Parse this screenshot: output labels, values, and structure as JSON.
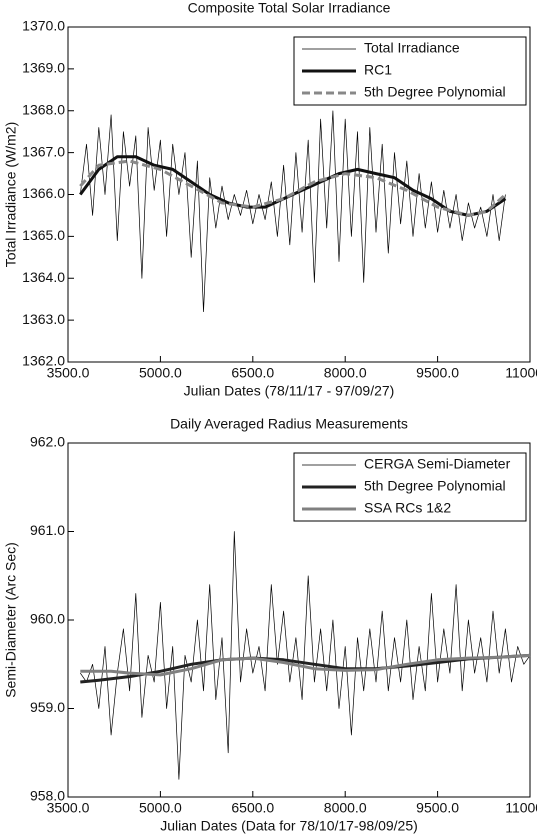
{
  "chart_data": [
    {
      "type": "line",
      "title": "Composite Total Solar Irradiance",
      "xlabel": "Julian Dates (78/11/17 - 97/09/27)",
      "ylabel": "Total Irradiance (W/m2)",
      "xlim": [
        3500,
        11000
      ],
      "ylim": [
        1362,
        1370
      ],
      "xticks": [
        {
          "value": 3500,
          "label": "3500.0"
        },
        {
          "value": 5000,
          "label": "5000.0"
        },
        {
          "value": 6500,
          "label": "6500.0"
        },
        {
          "value": 8000,
          "label": "8000.0"
        },
        {
          "value": 9500,
          "label": "9500.0"
        },
        {
          "value": 11000,
          "label": "11000.0"
        }
      ],
      "yticks": [
        {
          "value": 1362,
          "label": "1362.0"
        },
        {
          "value": 1363,
          "label": "1363.0"
        },
        {
          "value": 1364,
          "label": "1364.0"
        },
        {
          "value": 1365,
          "label": "1365.0"
        },
        {
          "value": 1366,
          "label": "1366.0"
        },
        {
          "value": 1367,
          "label": "1367.0"
        },
        {
          "value": 1368,
          "label": "1368.0"
        },
        {
          "value": 1369,
          "label": "1369.0"
        },
        {
          "value": 1370,
          "label": "1370.0"
        }
      ],
      "legend": "upper right",
      "series": [
        {
          "name": "Total Irradiance",
          "color": "#000000",
          "style": "thin",
          "x": [
            3700,
            3800,
            3900,
            4000,
            4100,
            4200,
            4300,
            4400,
            4500,
            4600,
            4700,
            4800,
            4900,
            5000,
            5100,
            5200,
            5300,
            5400,
            5500,
            5600,
            5700,
            5800,
            5900,
            6000,
            6100,
            6200,
            6300,
            6400,
            6500,
            6600,
            6700,
            6800,
            6900,
            7000,
            7100,
            7200,
            7300,
            7400,
            7500,
            7600,
            7700,
            7800,
            7900,
            8000,
            8100,
            8200,
            8300,
            8400,
            8500,
            8600,
            8700,
            8800,
            8900,
            9000,
            9100,
            9200,
            9300,
            9400,
            9500,
            9600,
            9700,
            9800,
            9900,
            10000,
            10100,
            10200,
            10300,
            10400,
            10500,
            10600
          ],
          "values": [
            1366.0,
            1367.2,
            1365.5,
            1367.6,
            1366.0,
            1367.9,
            1364.9,
            1367.5,
            1366.2,
            1367.4,
            1364.0,
            1367.6,
            1366.1,
            1367.3,
            1365.0,
            1367.2,
            1366.0,
            1367.0,
            1364.5,
            1366.8,
            1363.2,
            1366.4,
            1365.2,
            1366.2,
            1365.4,
            1366.0,
            1365.5,
            1366.1,
            1365.3,
            1366.0,
            1365.4,
            1366.3,
            1365.0,
            1366.7,
            1364.8,
            1367.0,
            1365.1,
            1367.3,
            1363.9,
            1367.8,
            1365.2,
            1368.0,
            1364.4,
            1367.8,
            1365.0,
            1367.5,
            1363.9,
            1367.6,
            1365.1,
            1367.2,
            1364.6,
            1367.0,
            1365.3,
            1366.8,
            1365.0,
            1366.5,
            1365.2,
            1366.3,
            1365.1,
            1366.1,
            1365.2,
            1366.0,
            1364.9,
            1365.8,
            1365.2,
            1365.7,
            1365.0,
            1366.0,
            1364.9,
            1366.0
          ]
        },
        {
          "name": "RC1",
          "color": "#111111",
          "style": "thick",
          "x": [
            3700,
            4000,
            4300,
            4600,
            4900,
            5200,
            5500,
            5800,
            6100,
            6400,
            6700,
            7000,
            7300,
            7600,
            7900,
            8200,
            8500,
            8800,
            9100,
            9400,
            9700,
            10000,
            10300,
            10600
          ],
          "values": [
            1366.0,
            1366.6,
            1366.9,
            1366.9,
            1366.7,
            1366.6,
            1366.3,
            1366.0,
            1365.8,
            1365.7,
            1365.7,
            1365.9,
            1366.1,
            1366.3,
            1366.5,
            1366.6,
            1366.5,
            1366.4,
            1366.1,
            1365.9,
            1365.6,
            1365.5,
            1365.6,
            1365.9
          ]
        },
        {
          "name": "5th Degree Polynomial",
          "color": "#888888",
          "style": "dashed",
          "x": [
            3700,
            4000,
            4500,
            5000,
            5500,
            6000,
            6500,
            7000,
            7500,
            8000,
            8500,
            9000,
            9500,
            10000,
            10300,
            10600
          ],
          "values": [
            1366.2,
            1366.7,
            1366.8,
            1366.6,
            1366.2,
            1365.8,
            1365.7,
            1365.9,
            1366.3,
            1366.5,
            1366.4,
            1366.1,
            1365.7,
            1365.5,
            1365.6,
            1366.0
          ]
        }
      ]
    },
    {
      "type": "line",
      "title": "Daily Averaged Radius Measurements",
      "xlabel": "Julian Dates (Data for 78/10/17-98/09/25)",
      "ylabel": "Semi-Diameter (Arc Sec)",
      "xlim": [
        3500,
        11000
      ],
      "ylim": [
        958,
        962
      ],
      "xticks": [
        {
          "value": 3500,
          "label": "3500.0"
        },
        {
          "value": 5000,
          "label": "5000.0"
        },
        {
          "value": 6500,
          "label": "6500.0"
        },
        {
          "value": 8000,
          "label": "8000.0"
        },
        {
          "value": 9500,
          "label": "9500.0"
        },
        {
          "value": 11000,
          "label": "11000.0"
        }
      ],
      "yticks": [
        {
          "value": 958,
          "label": "958.0"
        },
        {
          "value": 959,
          "label": "959.0"
        },
        {
          "value": 960,
          "label": "960.0"
        },
        {
          "value": 961,
          "label": "961.0"
        },
        {
          "value": 962,
          "label": "962.0"
        }
      ],
      "legend": "upper right",
      "series": [
        {
          "name": "CERGA Semi-Diameter",
          "color": "#000000",
          "style": "thin",
          "x": [
            3700,
            3800,
            3900,
            4000,
            4100,
            4200,
            4300,
            4400,
            4500,
            4600,
            4700,
            4800,
            4900,
            5000,
            5100,
            5200,
            5300,
            5400,
            5500,
            5600,
            5700,
            5800,
            5900,
            6000,
            6100,
            6200,
            6300,
            6400,
            6500,
            6600,
            6700,
            6800,
            6900,
            7000,
            7100,
            7200,
            7300,
            7400,
            7500,
            7600,
            7700,
            7800,
            7900,
            8000,
            8100,
            8200,
            8300,
            8400,
            8500,
            8600,
            8700,
            8800,
            8900,
            9000,
            9100,
            9200,
            9300,
            9400,
            9500,
            9600,
            9700,
            9800,
            9900,
            10000,
            10100,
            10200,
            10300,
            10400,
            10500,
            10600,
            10700,
            10800,
            10900,
            11000
          ],
          "values": [
            959.4,
            959.3,
            959.5,
            959.0,
            959.7,
            958.7,
            959.4,
            959.9,
            959.2,
            960.3,
            958.9,
            959.6,
            959.3,
            960.2,
            959.0,
            959.7,
            958.2,
            959.6,
            959.3,
            960.0,
            959.2,
            960.4,
            959.1,
            959.8,
            958.5,
            961.0,
            959.3,
            959.9,
            959.4,
            959.7,
            959.2,
            960.4,
            959.5,
            960.1,
            959.3,
            959.8,
            959.1,
            960.5,
            959.3,
            959.9,
            959.2,
            960.0,
            959.0,
            959.7,
            958.7,
            959.8,
            959.2,
            959.9,
            959.3,
            960.1,
            959.2,
            959.8,
            959.3,
            960.0,
            959.1,
            959.7,
            959.2,
            960.3,
            959.3,
            959.9,
            959.4,
            960.4,
            959.2,
            960.0,
            959.4,
            959.8,
            959.3,
            960.1,
            959.4,
            959.9,
            959.3,
            959.7,
            959.5,
            959.6
          ]
        },
        {
          "name": "5th Degree Polynomial",
          "color": "#222222",
          "style": "thick",
          "x": [
            3700,
            4000,
            4500,
            5000,
            5500,
            6000,
            6500,
            7000,
            7500,
            8000,
            8500,
            9000,
            9500,
            10000,
            10500,
            11000
          ],
          "values": [
            959.3,
            959.32,
            959.36,
            959.42,
            959.5,
            959.55,
            959.57,
            959.55,
            959.5,
            959.45,
            959.45,
            959.48,
            959.52,
            959.56,
            959.58,
            959.6
          ]
        },
        {
          "name": "SSA RCs 1&2",
          "color": "#808080",
          "style": "thick",
          "x": [
            3700,
            4200,
            4500,
            5000,
            5500,
            6000,
            6500,
            7000,
            7500,
            8000,
            8500,
            9000,
            9500,
            10000,
            10500,
            11000
          ],
          "values": [
            959.42,
            959.42,
            959.4,
            959.38,
            959.45,
            959.55,
            959.57,
            959.52,
            959.45,
            959.43,
            959.44,
            959.5,
            959.55,
            959.57,
            959.58,
            959.6
          ]
        }
      ]
    }
  ]
}
